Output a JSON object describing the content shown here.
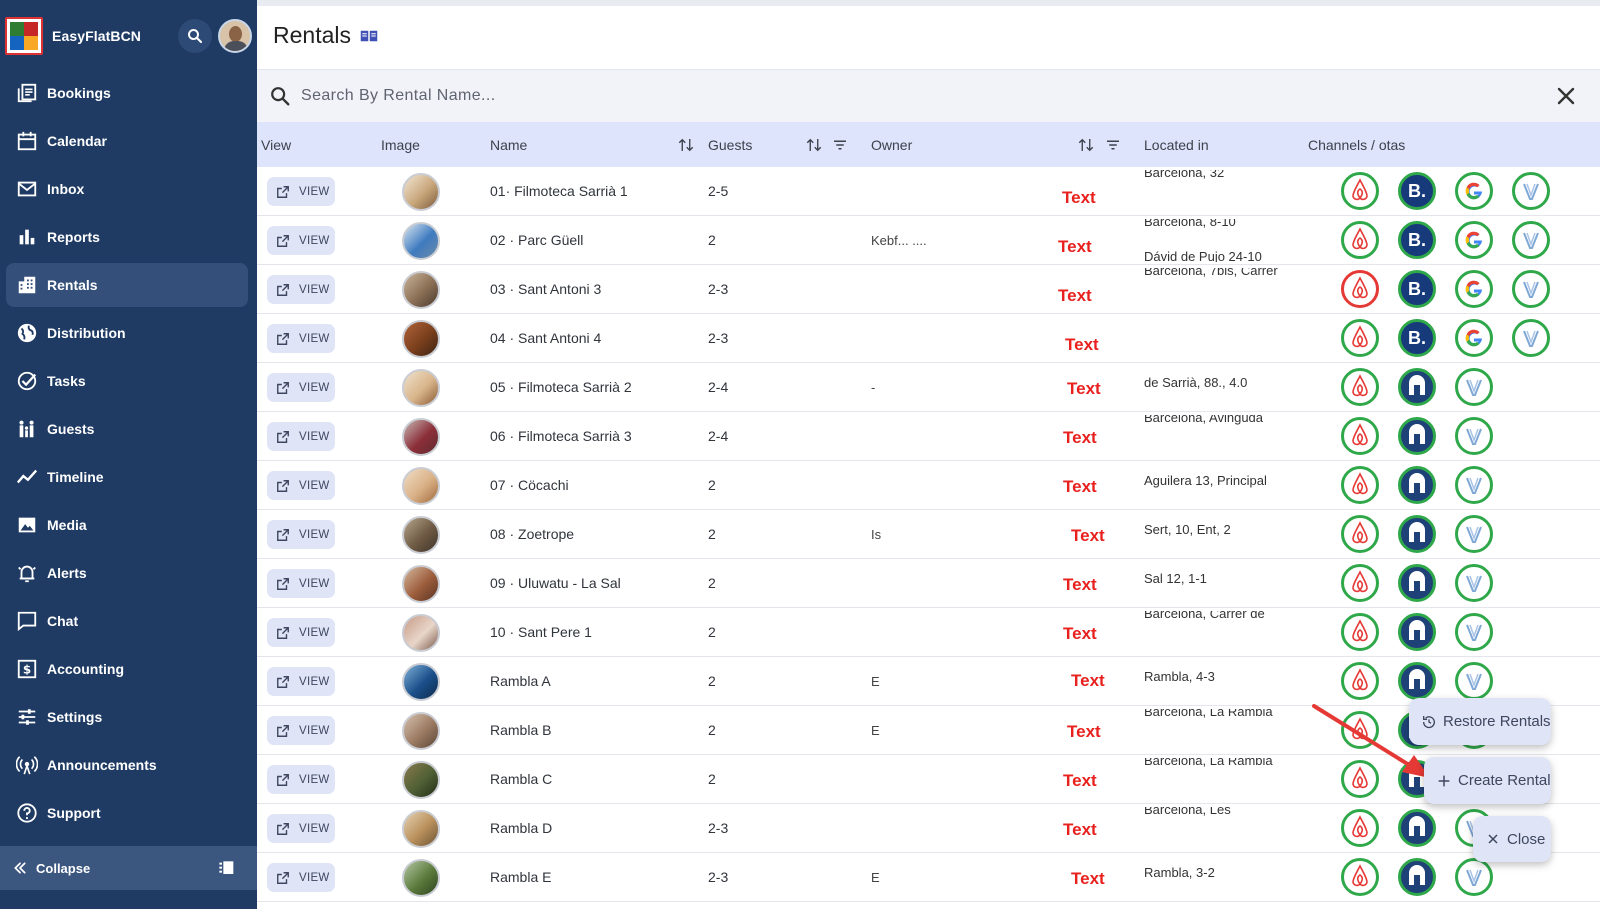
{
  "app": {
    "name": "EasyFlatBCN"
  },
  "sidebar": {
    "items": [
      {
        "label": "Bookings",
        "icon": "bookings-icon"
      },
      {
        "label": "Calendar",
        "icon": "calendar-icon"
      },
      {
        "label": "Inbox",
        "icon": "inbox-icon"
      },
      {
        "label": "Reports",
        "icon": "reports-icon"
      },
      {
        "label": "Rentals",
        "icon": "rentals-icon",
        "active": true
      },
      {
        "label": "Distribution",
        "icon": "globe-icon"
      },
      {
        "label": "Tasks",
        "icon": "tasks-icon"
      },
      {
        "label": "Guests",
        "icon": "guests-icon"
      },
      {
        "label": "Timeline",
        "icon": "timeline-icon"
      },
      {
        "label": "Media",
        "icon": "media-icon"
      },
      {
        "label": "Alerts",
        "icon": "alerts-icon"
      },
      {
        "label": "Chat",
        "icon": "chat-icon"
      },
      {
        "label": "Accounting",
        "icon": "accounting-icon"
      },
      {
        "label": "Settings",
        "icon": "settings-icon"
      },
      {
        "label": "Announcements",
        "icon": "announcements-icon"
      },
      {
        "label": "Support",
        "icon": "support-icon"
      }
    ],
    "collapse_label": "Collapse"
  },
  "page": {
    "title": "Rentals"
  },
  "search": {
    "placeholder": "Search By Rental Name..."
  },
  "table": {
    "columns": {
      "view": "View",
      "image": "Image",
      "name": "Name",
      "guests": "Guests",
      "owner": "Owner",
      "located": "Located in",
      "channels": "Channels / otas"
    },
    "view_label": "VIEW",
    "owner_text": "Text",
    "rows": [
      {
        "name": "01· Filmoteca Sarrià 1",
        "guests": "2-5",
        "owner_extra": "",
        "loc1": "Barcelona, 32",
        "loc2": "",
        "channels": [
          "airbnb",
          "booking",
          "google",
          "vrbo"
        ]
      },
      {
        "name": "02 · Parc Güell",
        "guests": "2",
        "owner_extra": "Kebf... ....",
        "loc1": "Barcelona, 8-10",
        "loc2": "Dávid de Pujo 24-10",
        "channels": [
          "airbnb",
          "booking",
          "google",
          "vrbo"
        ]
      },
      {
        "name": "03 · Sant Antoni 3",
        "guests": "2-3",
        "owner_extra": "",
        "loc1": "Barcelona, 7bis, Carrer",
        "loc2": "",
        "channels": [
          "airbnb-red",
          "booking",
          "google",
          "vrbo"
        ]
      },
      {
        "name": "04 · Sant Antoni 4",
        "guests": "2-3",
        "owner_extra": "",
        "loc1": "",
        "loc2": "",
        "channels": [
          "airbnb",
          "booking",
          "google",
          "vrbo"
        ]
      },
      {
        "name": "05 · Filmoteca Sarrià 2",
        "guests": "2-4",
        "owner_extra": "-",
        "loc1": "",
        "loc2": "de Sarrià, 88., 4.0",
        "channels": [
          "airbnb",
          "home",
          "vrbo"
        ]
      },
      {
        "name": "06 · Filmoteca Sarrià 3",
        "guests": "2-4",
        "owner_extra": "",
        "loc1": "Barcelona, Avinguda",
        "loc2": "",
        "channels": [
          "airbnb",
          "home",
          "vrbo"
        ]
      },
      {
        "name": "07 · Cöcachi",
        "guests": "2",
        "owner_extra": "",
        "loc1": "",
        "loc2": "Aguilera 13, Principal",
        "channels": [
          "airbnb",
          "home",
          "vrbo"
        ]
      },
      {
        "name": "08 · Zoetrope",
        "guests": "2",
        "owner_extra": "Is",
        "loc1": "",
        "loc2": "Sert, 10, Ent, 2",
        "channels": [
          "airbnb",
          "home",
          "vrbo"
        ]
      },
      {
        "name": "09 · Uluwatu - La Sal",
        "guests": "2",
        "owner_extra": "",
        "loc1": "",
        "loc2": "Sal 12, 1-1",
        "channels": [
          "airbnb",
          "home",
          "vrbo"
        ]
      },
      {
        "name": "10 · Sant Pere 1",
        "guests": "2",
        "owner_extra": "",
        "loc1": "Barcelona, Carrer de",
        "loc2": "",
        "channels": [
          "airbnb",
          "home",
          "vrbo"
        ]
      },
      {
        "name": "Rambla A",
        "guests": "2",
        "owner_extra": "E",
        "loc1": "",
        "loc2": "Rambla, 4-3",
        "channels": [
          "airbnb",
          "home",
          "vrbo"
        ]
      },
      {
        "name": "Rambla B",
        "guests": "2",
        "owner_extra": "E",
        "loc1": "Barcelona, La Rambla",
        "loc2": "",
        "channels": [
          "airbnb",
          "home",
          "vrbo"
        ]
      },
      {
        "name": "Rambla C",
        "guests": "2",
        "owner_extra": "",
        "loc1": "Barcelona, La Rambla",
        "loc2": "",
        "channels": [
          "airbnb",
          "home",
          "vrbo"
        ]
      },
      {
        "name": "Rambla D",
        "guests": "2-3",
        "owner_extra": "",
        "loc1": "Barcelona, Les",
        "loc2": "",
        "channels": [
          "airbnb",
          "home",
          "vrbo"
        ]
      },
      {
        "name": "Rambla E",
        "guests": "2-3",
        "owner_extra": "E",
        "loc1": "",
        "loc2": "Rambla, 3-2",
        "channels": [
          "airbnb",
          "home",
          "vrbo"
        ]
      }
    ]
  },
  "speed_dial": {
    "restore_label": "Restore Rentals",
    "create_label": "Create Rental",
    "close_label": "Close"
  },
  "colors": {
    "sidebar_bg": "#1f3b63",
    "active_nav": "#34507a",
    "header_bg": "#dde4fb",
    "owner_text": "#e8211e",
    "channel_ring": "#2fa84a",
    "arrow": "#e53935"
  }
}
